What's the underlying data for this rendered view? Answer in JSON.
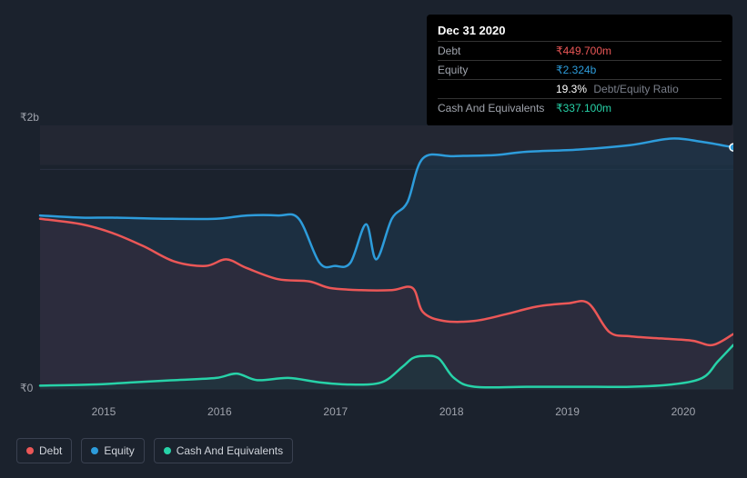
{
  "tooltip": {
    "date": "Dec 31 2020",
    "rows": [
      {
        "label": "Debt",
        "value": "₹449.700m",
        "cls": "debt"
      },
      {
        "label": "Equity",
        "value": "₹2.324b",
        "cls": "equity"
      },
      {
        "label": "",
        "value": "19.3%",
        "sub": "Debt/Equity Ratio",
        "cls": ""
      },
      {
        "label": "Cash And Equivalents",
        "value": "₹337.100m",
        "cls": "cash"
      }
    ]
  },
  "chart": {
    "type": "area",
    "background": "#1b222d",
    "plot_bg_top": "#20222b",
    "plot_bg_bottom": "#1b222d",
    "grid_color": "#2a3140",
    "ylabels": [
      {
        "text": "₹2b",
        "y": 0
      },
      {
        "text": "₹0",
        "y": 1
      }
    ],
    "ylim": [
      0,
      2.4
    ],
    "baseline_y": 1.0,
    "xticks": [
      "2015",
      "2016",
      "2017",
      "2018",
      "2019",
      "2020"
    ],
    "xrange": [
      2014.3,
      2021.0
    ],
    "series": {
      "equity": {
        "color": "#2d9cdb",
        "fill": "#1e3a52",
        "fill_opacity": 0.55,
        "stroke_width": 2.5,
        "points": [
          [
            2014.3,
            1.58
          ],
          [
            2014.7,
            1.56
          ],
          [
            2015.0,
            1.56
          ],
          [
            2015.5,
            1.55
          ],
          [
            2016.0,
            1.55
          ],
          [
            2016.3,
            1.58
          ],
          [
            2016.6,
            1.58
          ],
          [
            2016.8,
            1.55
          ],
          [
            2017.0,
            1.15
          ],
          [
            2017.15,
            1.12
          ],
          [
            2017.3,
            1.15
          ],
          [
            2017.45,
            1.5
          ],
          [
            2017.55,
            1.18
          ],
          [
            2017.7,
            1.55
          ],
          [
            2017.85,
            1.7
          ],
          [
            2018.0,
            2.1
          ],
          [
            2018.3,
            2.12
          ],
          [
            2018.7,
            2.13
          ],
          [
            2019.0,
            2.16
          ],
          [
            2019.5,
            2.18
          ],
          [
            2020.0,
            2.22
          ],
          [
            2020.4,
            2.28
          ],
          [
            2020.7,
            2.25
          ],
          [
            2021.0,
            2.2
          ]
        ]
      },
      "debt": {
        "color": "#eb5757",
        "fill": "#3a2a3a",
        "fill_opacity": 0.55,
        "stroke_width": 2.5,
        "points": [
          [
            2014.3,
            1.55
          ],
          [
            2014.7,
            1.5
          ],
          [
            2015.0,
            1.42
          ],
          [
            2015.3,
            1.3
          ],
          [
            2015.6,
            1.16
          ],
          [
            2015.9,
            1.12
          ],
          [
            2016.1,
            1.18
          ],
          [
            2016.3,
            1.1
          ],
          [
            2016.6,
            1.0
          ],
          [
            2016.9,
            0.98
          ],
          [
            2017.1,
            0.92
          ],
          [
            2017.4,
            0.9
          ],
          [
            2017.7,
            0.9
          ],
          [
            2017.9,
            0.92
          ],
          [
            2018.0,
            0.7
          ],
          [
            2018.2,
            0.62
          ],
          [
            2018.5,
            0.62
          ],
          [
            2018.8,
            0.68
          ],
          [
            2019.1,
            0.75
          ],
          [
            2019.4,
            0.78
          ],
          [
            2019.6,
            0.78
          ],
          [
            2019.8,
            0.52
          ],
          [
            2020.0,
            0.48
          ],
          [
            2020.3,
            0.46
          ],
          [
            2020.6,
            0.44
          ],
          [
            2020.8,
            0.4
          ],
          [
            2021.0,
            0.5
          ]
        ]
      },
      "cash": {
        "color": "#27d2a8",
        "fill": "#1b3a40",
        "fill_opacity": 0.55,
        "stroke_width": 2.5,
        "points": [
          [
            2014.3,
            0.03
          ],
          [
            2014.8,
            0.04
          ],
          [
            2015.2,
            0.06
          ],
          [
            2015.6,
            0.08
          ],
          [
            2016.0,
            0.1
          ],
          [
            2016.2,
            0.14
          ],
          [
            2016.4,
            0.08
          ],
          [
            2016.7,
            0.1
          ],
          [
            2017.0,
            0.06
          ],
          [
            2017.3,
            0.04
          ],
          [
            2017.6,
            0.06
          ],
          [
            2017.8,
            0.2
          ],
          [
            2017.9,
            0.28
          ],
          [
            2018.0,
            0.3
          ],
          [
            2018.15,
            0.28
          ],
          [
            2018.3,
            0.1
          ],
          [
            2018.5,
            0.02
          ],
          [
            2019.0,
            0.02
          ],
          [
            2019.5,
            0.02
          ],
          [
            2020.0,
            0.02
          ],
          [
            2020.4,
            0.04
          ],
          [
            2020.7,
            0.1
          ],
          [
            2020.85,
            0.25
          ],
          [
            2021.0,
            0.4
          ]
        ]
      }
    },
    "marker": {
      "x": 2021.0,
      "equity_y": 2.2,
      "color": "#2d9cdb"
    }
  },
  "legend": [
    {
      "label": "Debt",
      "color": "#eb5757"
    },
    {
      "label": "Equity",
      "color": "#2d9cdb"
    },
    {
      "label": "Cash And Equivalents",
      "color": "#27d2a8"
    }
  ]
}
